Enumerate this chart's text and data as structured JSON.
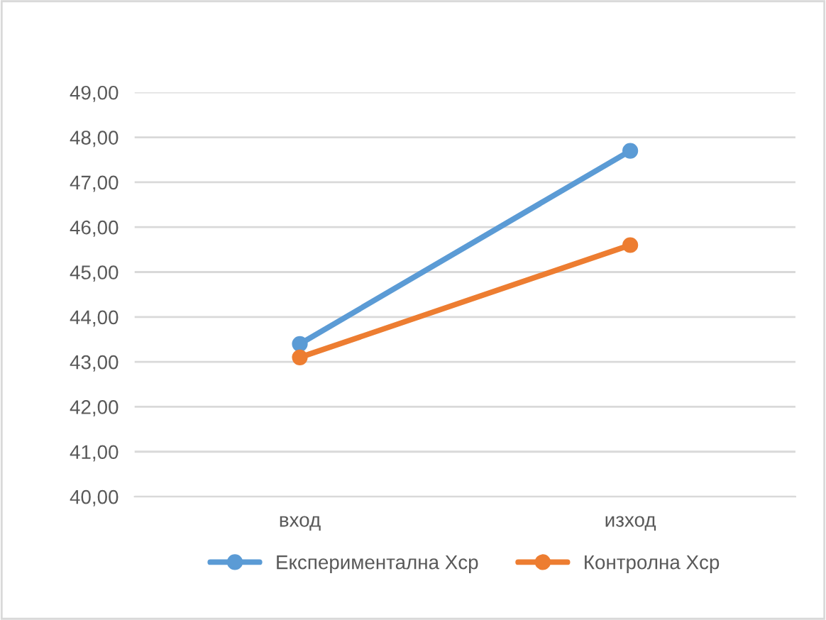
{
  "chart_data": {
    "type": "line",
    "categories": [
      "вход",
      "изход"
    ],
    "series": [
      {
        "name": "Експериментална Хср",
        "color": "#5b9bd5",
        "values": [
          43.4,
          47.7
        ]
      },
      {
        "name": "Контролна Хср",
        "color": "#ed7d31",
        "values": [
          43.1,
          45.6
        ]
      }
    ],
    "ylim": [
      40,
      49
    ],
    "yticks": [
      {
        "value": 40,
        "label": "40,00"
      },
      {
        "value": 41,
        "label": "41,00"
      },
      {
        "value": 42,
        "label": "42,00"
      },
      {
        "value": 43,
        "label": "43,00"
      },
      {
        "value": 44,
        "label": "44,00"
      },
      {
        "value": 45,
        "label": "45,00"
      },
      {
        "value": 46,
        "label": "46,00"
      },
      {
        "value": 47,
        "label": "47,00"
      },
      {
        "value": 48,
        "label": "48,00"
      },
      {
        "value": 49,
        "label": "49,00"
      }
    ],
    "grid": "y",
    "legend": "bottom",
    "marker": "circle",
    "line_style": "solid"
  }
}
